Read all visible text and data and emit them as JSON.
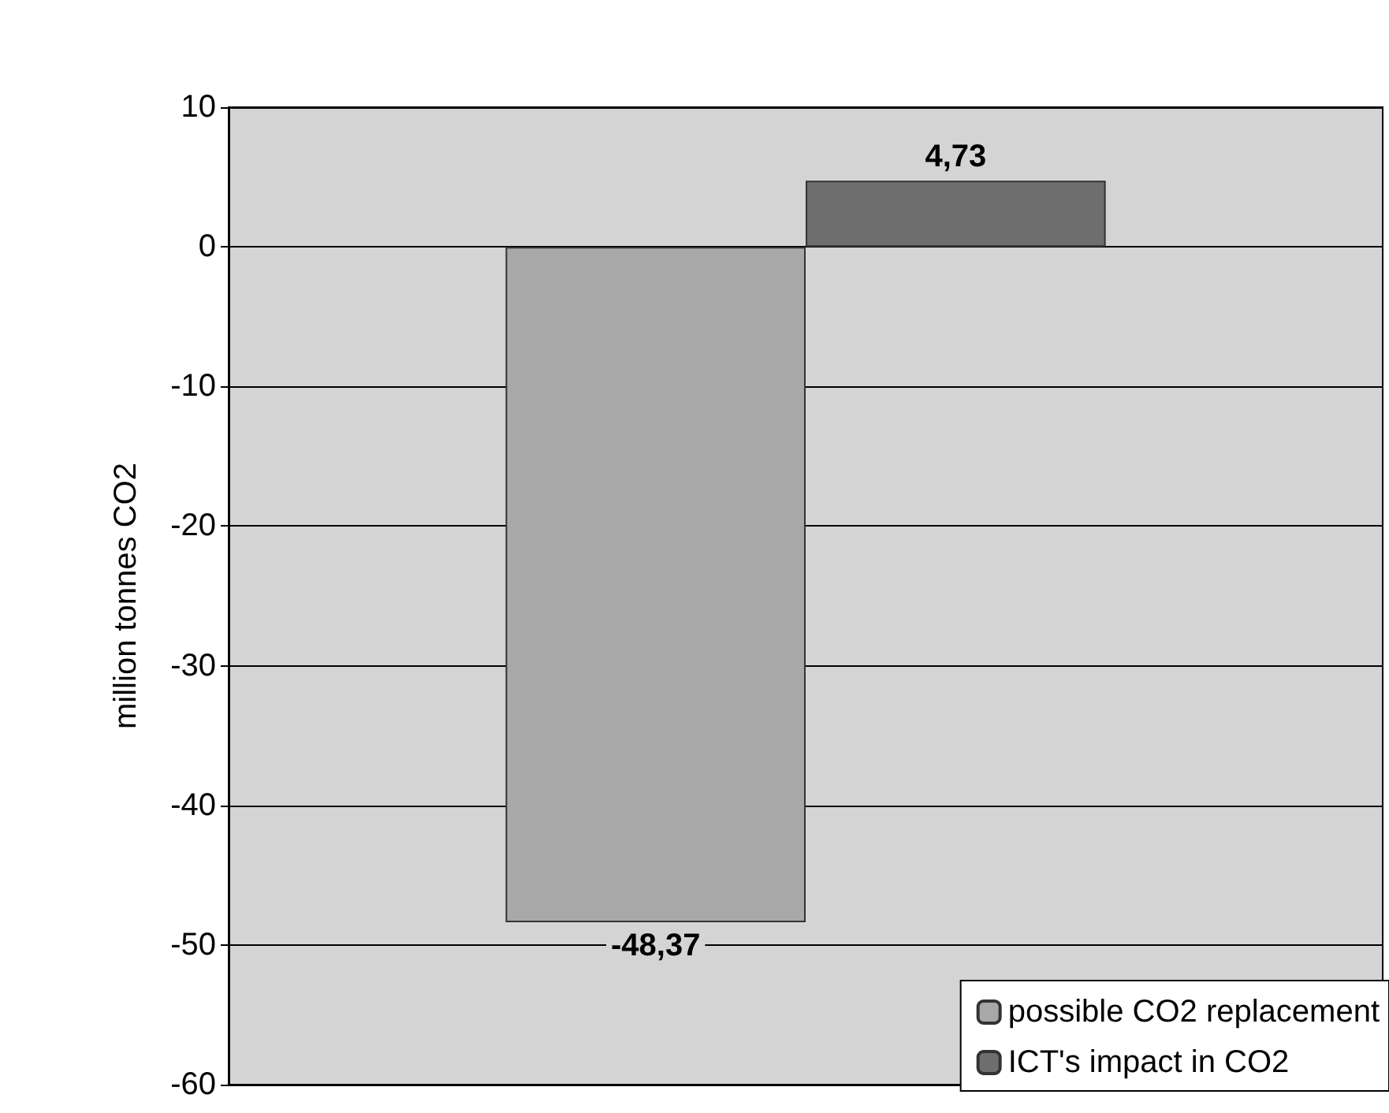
{
  "chart_data": {
    "type": "bar",
    "ylabel": "million tonnes CO2",
    "categories": [
      null
    ],
    "series": [
      {
        "name": "possible CO2 replacement",
        "color": "#a8a8a8",
        "values": [
          -48.37
        ],
        "value_labels": [
          "-48,37"
        ]
      },
      {
        "name": "ICT's impact in CO2",
        "color": "#6e6e6e",
        "values": [
          4.73
        ],
        "value_labels": [
          "4,73"
        ]
      }
    ],
    "ylim": [
      -60,
      10
    ],
    "yticks": [
      -60,
      -50,
      -40,
      -30,
      -20,
      -10,
      0,
      10
    ],
    "grid": "y",
    "legend": "bottom right"
  }
}
